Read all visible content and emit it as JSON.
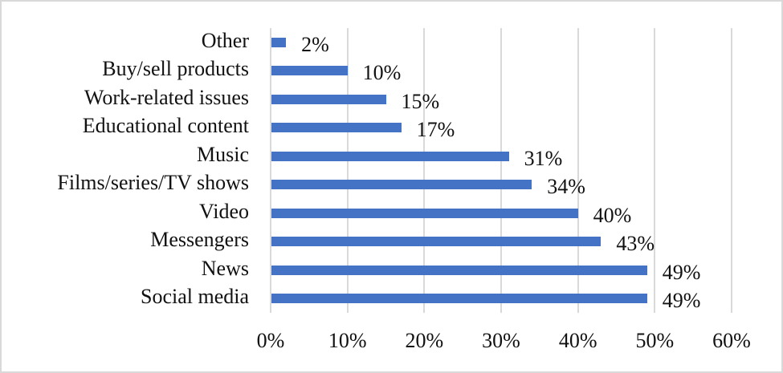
{
  "chart_data": {
    "type": "bar",
    "orientation": "horizontal",
    "title": "",
    "xlabel": "",
    "ylabel": "",
    "xlim": [
      0,
      60
    ],
    "grid": true,
    "legend": null,
    "bar_color": "#4472C4",
    "categories": [
      "Other",
      "Buy/sell products",
      "Work-related issues",
      "Educational content",
      "Music",
      "Films/series/TV shows",
      "Video",
      "Messengers",
      "News",
      "Social media"
    ],
    "values": [
      2,
      10,
      15,
      17,
      31,
      34,
      40,
      43,
      49,
      49
    ],
    "value_labels": [
      "2%",
      "10%",
      "15%",
      "17%",
      "31%",
      "34%",
      "40%",
      "43%",
      "49%",
      "49%"
    ],
    "x_ticks": [
      "0%",
      "10%",
      "20%",
      "30%",
      "40%",
      "50%",
      "60%"
    ]
  }
}
